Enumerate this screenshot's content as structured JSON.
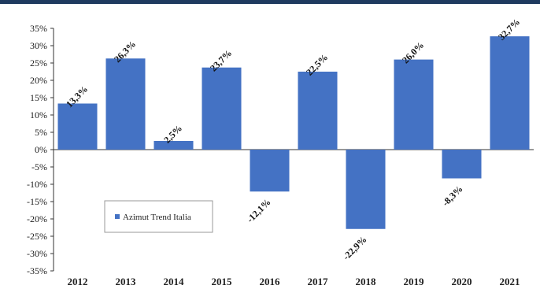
{
  "chart_data": {
    "type": "bar",
    "categories": [
      "2012",
      "2013",
      "2014",
      "2015",
      "2016",
      "2017",
      "2018",
      "2019",
      "2020",
      "2021"
    ],
    "series": [
      {
        "name": "Azimut Trend Italia",
        "values": [
          13.3,
          26.3,
          2.5,
          23.7,
          -12.1,
          22.5,
          -22.9,
          26.0,
          -8.3,
          32.7
        ],
        "labels": [
          "13,3%",
          "26,3%",
          "2,5%",
          "23,7%",
          "-12,1%",
          "22,5%",
          "-22,9%",
          "26,0%",
          "-8,3%",
          "32,7%"
        ]
      }
    ],
    "ylim": [
      -35,
      35
    ],
    "yticks": [
      35,
      30,
      25,
      20,
      15,
      10,
      5,
      0,
      -5,
      -10,
      -15,
      -20,
      -25,
      -30,
      -35
    ],
    "ytick_labels": [
      "35%",
      "30%",
      "25%",
      "20%",
      "15%",
      "10%",
      "5%",
      "0%",
      "-5%",
      "-10%",
      "-15%",
      "-20%",
      "-25%",
      "-30%",
      "-35%"
    ],
    "bar_color": "#4472c4",
    "grid": false,
    "legend_position": "lower-left inside plot"
  }
}
